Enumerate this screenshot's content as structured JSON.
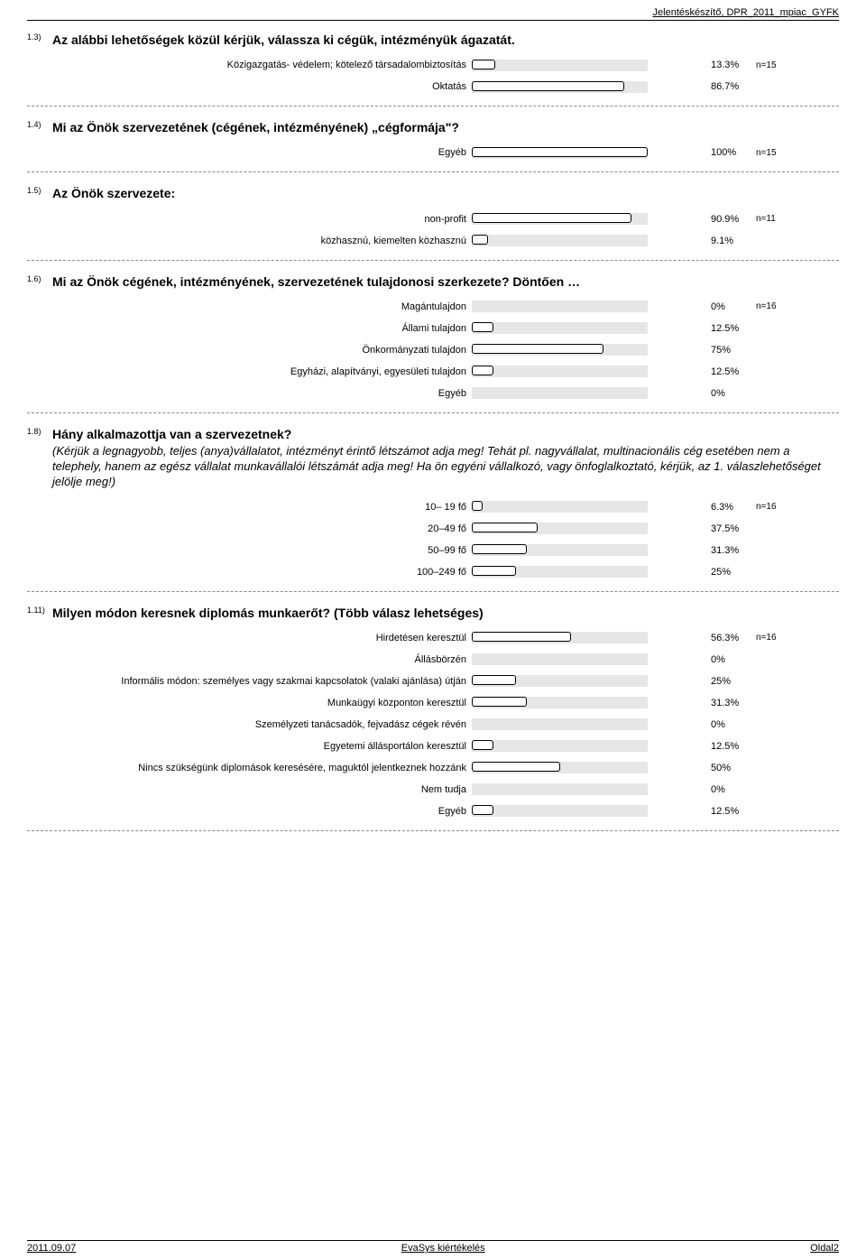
{
  "header": "Jelentéskészítő, DPR_2011_mpiac_GYFK",
  "footer": {
    "left": "2011.09.07",
    "center": "EvaSys kiértékelés",
    "right": "Oldal2"
  },
  "bar_track_color": "#e6e6e6",
  "bar_fill_bg": "#ffffff",
  "bar_border": "#000000",
  "questions": [
    {
      "num": "1.3)",
      "title": "Az alábbi lehetőségek közül kérjük, válassza ki cégük, intézményük ágazatát.",
      "n": "n=15",
      "items": [
        {
          "label": "Közigazgatás- védelem; kötelező társadalombiztosítás",
          "pct": 13.3,
          "pct_text": "13.3%"
        },
        {
          "label": "Oktatás",
          "pct": 86.7,
          "pct_text": "86.7%"
        }
      ]
    },
    {
      "num": "1.4)",
      "title": "Mi az Önök szervezetének (cégének, intézményének) „cégformája\"?",
      "n": "n=15",
      "items": [
        {
          "label": "Egyéb",
          "pct": 100,
          "pct_text": "100%"
        }
      ]
    },
    {
      "num": "1.5)",
      "title": "Az Önök szervezete:",
      "n": "n=11",
      "items": [
        {
          "label": "non-profit",
          "pct": 90.9,
          "pct_text": "90.9%"
        },
        {
          "label": "közhasznú, kiemelten közhasznú",
          "pct": 9.1,
          "pct_text": "9.1%"
        }
      ]
    },
    {
      "num": "1.6)",
      "title": "Mi az Önök cégének, intézményének, szervezetének tulajdonosi szerkezete? Döntően …",
      "n": "n=16",
      "items": [
        {
          "label": "Magántulajdon",
          "pct": 0,
          "pct_text": "0%"
        },
        {
          "label": "Állami tulajdon",
          "pct": 12.5,
          "pct_text": "12.5%"
        },
        {
          "label": "Önkormányzati tulajdon",
          "pct": 75,
          "pct_text": "75%"
        },
        {
          "label": "Egyházi, alapítványi, egyesületi tulajdon",
          "pct": 12.5,
          "pct_text": "12.5%"
        },
        {
          "label": "Egyéb",
          "pct": 0,
          "pct_text": "0%"
        }
      ]
    },
    {
      "num": "1.8)",
      "title": "Hány alkalmazottja van a szervezetnek?",
      "subtitle": "(Kérjük a legnagyobb, teljes (anya)vállalatot, intézményt érintő létszámot adja meg! Tehát pl. nagyvállalat, multinacionális cég esetében nem a telephely, hanem az egész vállalat munkavállalói létszámát adja meg! Ha ön egyéni vállalkozó, vagy önfoglalkoztató, kérjük, az 1. válaszlehetőséget jelölje meg!)",
      "n": "n=16",
      "items": [
        {
          "label": "10– 19 fő",
          "pct": 6.3,
          "pct_text": "6.3%"
        },
        {
          "label": "20–49 fő",
          "pct": 37.5,
          "pct_text": "37.5%"
        },
        {
          "label": "50–99 fő",
          "pct": 31.3,
          "pct_text": "31.3%"
        },
        {
          "label": "100–249 fő",
          "pct": 25,
          "pct_text": "25%"
        }
      ]
    },
    {
      "num": "1.11)",
      "title": "Milyen módon keresnek diplomás munkaerőt? (Több válasz lehetséges)",
      "n": "n=16",
      "items": [
        {
          "label": "Hirdetésen keresztül",
          "pct": 56.3,
          "pct_text": "56.3%"
        },
        {
          "label": "Állásbörzén",
          "pct": 0,
          "pct_text": "0%"
        },
        {
          "label": "Informális módon: személyes vagy szakmai kapcsolatok (valaki ajánlása) útján",
          "pct": 25,
          "pct_text": "25%"
        },
        {
          "label": "Munkaügyi központon keresztül",
          "pct": 31.3,
          "pct_text": "31.3%"
        },
        {
          "label": "Személyzeti tanácsadók, fejvadász cégek révén",
          "pct": 0,
          "pct_text": "0%"
        },
        {
          "label": "Egyetemi állásportálon keresztül",
          "pct": 12.5,
          "pct_text": "12.5%"
        },
        {
          "label": "Nincs szükségünk diplomások keresésére, maguktól jelentkeznek hozzánk",
          "pct": 50,
          "pct_text": "50%"
        },
        {
          "label": "Nem tudja",
          "pct": 0,
          "pct_text": "0%"
        },
        {
          "label": "Egyéb",
          "pct": 12.5,
          "pct_text": "12.5%"
        }
      ]
    }
  ]
}
